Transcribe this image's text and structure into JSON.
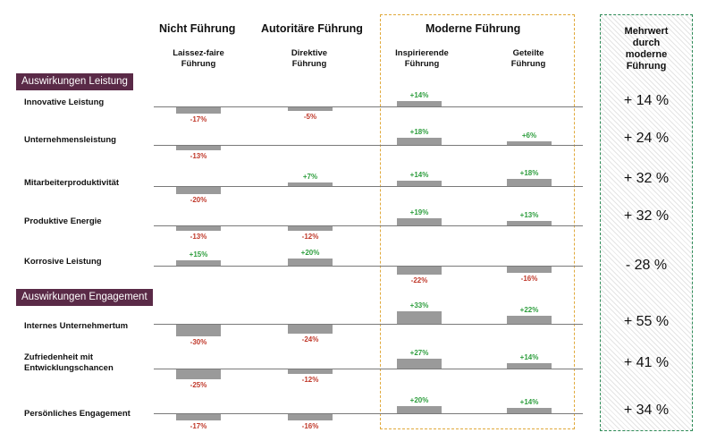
{
  "headers": {
    "groups": [
      "Nicht Führung",
      "Autoritäre Führung",
      "Moderne Führung"
    ],
    "styles": [
      "Laissez-faire Führung",
      "Direktive Führung",
      "Inspirierende Führung",
      "Geteilte Führung"
    ],
    "styles_lines": [
      [
        "Laissez-faire",
        "Führung"
      ],
      [
        "Direktive",
        "Führung"
      ],
      [
        "Inspirierende",
        "Führung"
      ],
      [
        "Geteilte",
        "Führung"
      ]
    ]
  },
  "mehrwert": {
    "title_lines": [
      "Mehrwert",
      "durch",
      "moderne",
      "Führung"
    ]
  },
  "sections": [
    "Auswirkungen Leistung",
    "Auswirkungen Engagement"
  ],
  "chart_data": {
    "type": "bar",
    "categories": [
      "Laissez-faire Führung",
      "Direktive Führung",
      "Inspirierende Führung",
      "Geteilte Führung"
    ],
    "unit": "%",
    "rows": [
      {
        "section": "Auswirkungen Leistung",
        "label": "Innovative Leistung",
        "label_lines": [
          "Innovative Leistung"
        ],
        "values": [
          -17,
          -5,
          14,
          null
        ],
        "labels": [
          "-17%",
          "-5%",
          "+14%",
          ""
        ],
        "mehrwert": "+ 14 %"
      },
      {
        "section": "Auswirkungen Leistung",
        "label": "Unternehmensleistung",
        "label_lines": [
          "Unternehmensleistung"
        ],
        "values": [
          -13,
          null,
          18,
          6
        ],
        "labels": [
          "-13%",
          "",
          "+18%",
          "+6%"
        ],
        "mehrwert": "+ 24 %"
      },
      {
        "section": "Auswirkungen Leistung",
        "label": "Mitarbeiterproduktivität",
        "label_lines": [
          "Mitarbeiterproduktivität"
        ],
        "values": [
          -20,
          7,
          14,
          18
        ],
        "labels": [
          "-20%",
          "+7%",
          "+14%",
          "+18%"
        ],
        "mehrwert": "+ 32 %"
      },
      {
        "section": "Auswirkungen Leistung",
        "label": "Produktive Energie",
        "label_lines": [
          "Produktive Energie"
        ],
        "values": [
          -13,
          -12,
          19,
          13
        ],
        "labels": [
          "-13%",
          "-12%",
          "+19%",
          "+13%"
        ],
        "mehrwert": "+ 32 %"
      },
      {
        "section": "Auswirkungen Leistung",
        "label": "Korrosive Leistung",
        "label_lines": [
          "Korrosive Leistung"
        ],
        "values": [
          15,
          20,
          -22,
          -16
        ],
        "labels": [
          "+15%",
          "+20%",
          "-22%",
          "-16%"
        ],
        "mehrwert": "- 28 %"
      },
      {
        "section": "Auswirkungen Engagement",
        "label": "Internes Unternehmertum",
        "label_lines": [
          "Internes Unternehmertum"
        ],
        "values": [
          -30,
          -24,
          33,
          22
        ],
        "labels": [
          "-30%",
          "-24%",
          "+33%",
          "+22%"
        ],
        "mehrwert": "+ 55 %"
      },
      {
        "section": "Auswirkungen Engagement",
        "label": "Zufriedenheit mit Entwicklungschancen",
        "label_lines": [
          "Zufriedenheit mit",
          "Entwicklungschancen"
        ],
        "values": [
          -25,
          -12,
          27,
          14
        ],
        "labels": [
          "-25%",
          "-12%",
          "+27%",
          "+14%"
        ],
        "mehrwert": "+ 41 %"
      },
      {
        "section": "Auswirkungen Engagement",
        "label": "Persönliches Engagement",
        "label_lines": [
          "Persönliches Engagement"
        ],
        "values": [
          -17,
          -16,
          20,
          14
        ],
        "labels": [
          "-17%",
          "-16%",
          "+20%",
          "+14%"
        ],
        "mehrwert": "+ 34 %"
      }
    ],
    "colors": {
      "bar": "#9a9a9a",
      "positive_label": "#2e9e3e",
      "negative_label": "#c0392b",
      "section_badge": "#5a2a47",
      "modern_frame": "#e0a93b",
      "mehrwert_frame": "#2e8b57"
    },
    "legend": "none",
    "grid": false
  }
}
